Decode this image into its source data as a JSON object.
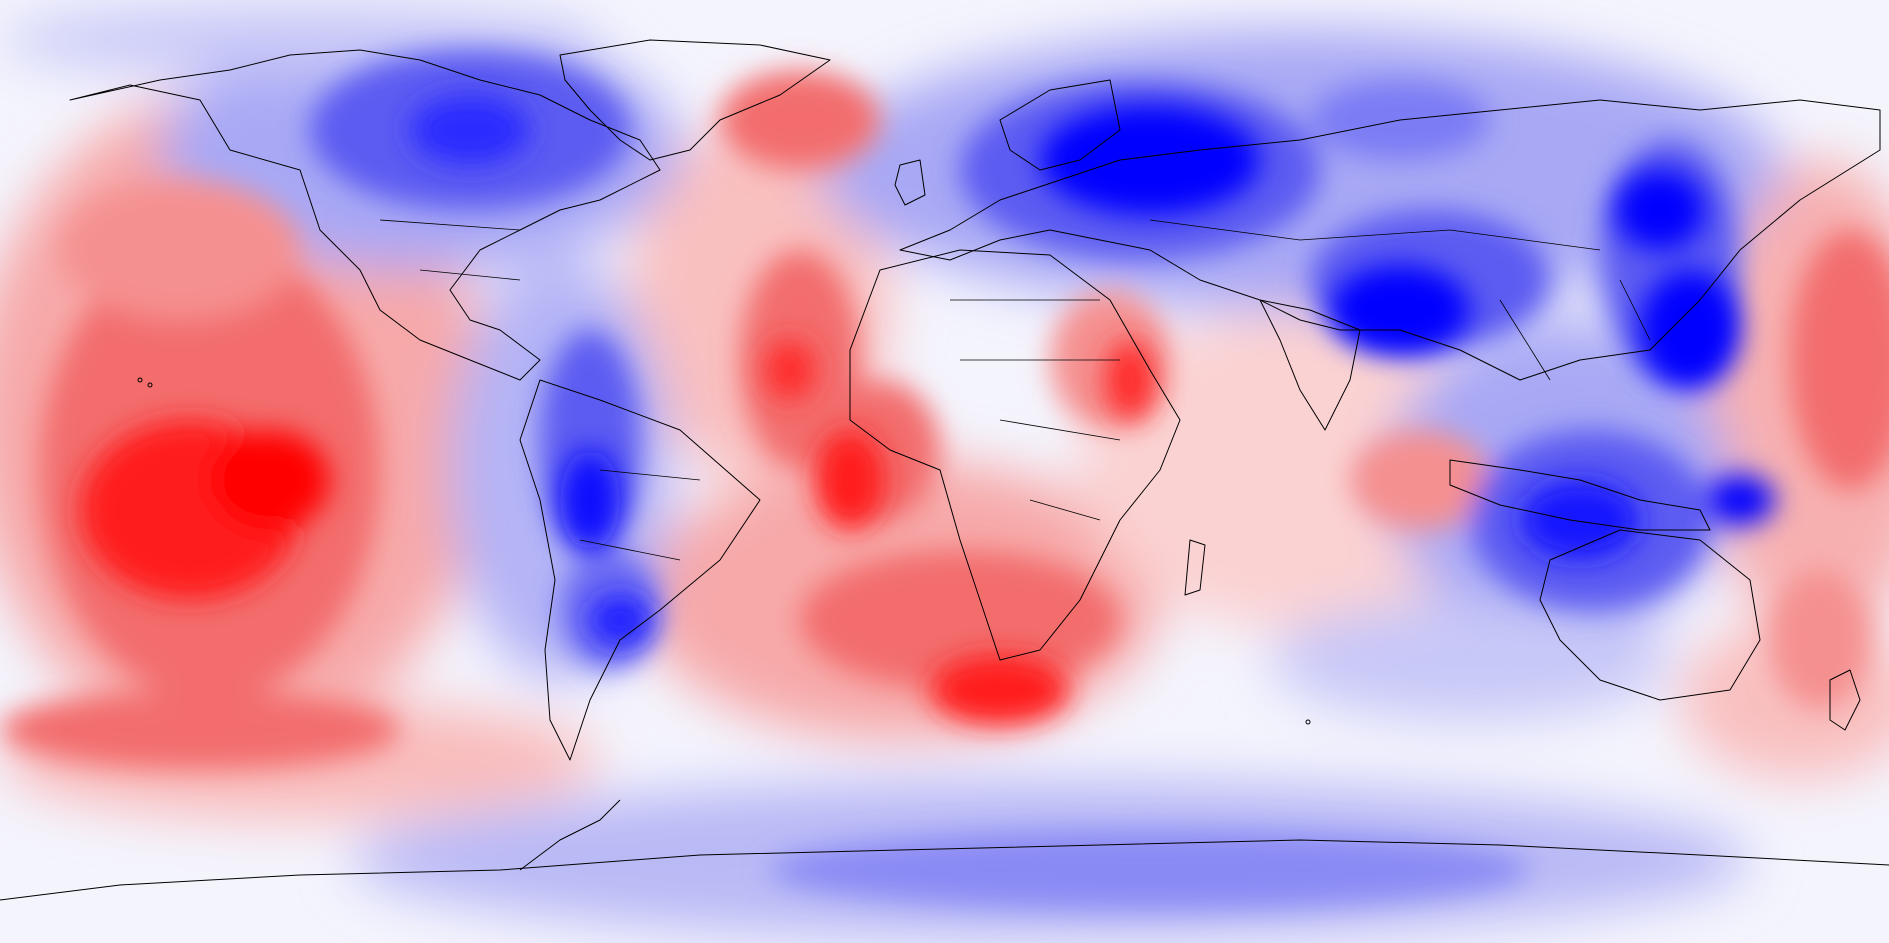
{
  "map": {
    "projection": "equirectangular",
    "palette": {
      "strong_blue": "#0000ff",
      "mid_blue": "#6f6ff5",
      "light_blue": "#dcdcfb",
      "neutral": "#ffffff",
      "light_red": "#fbd0d0",
      "mid_red": "#f56f6f",
      "strong_red": "#ff0000",
      "coastline": "#000000"
    },
    "icons": [
      "world-coastline-outline"
    ]
  }
}
